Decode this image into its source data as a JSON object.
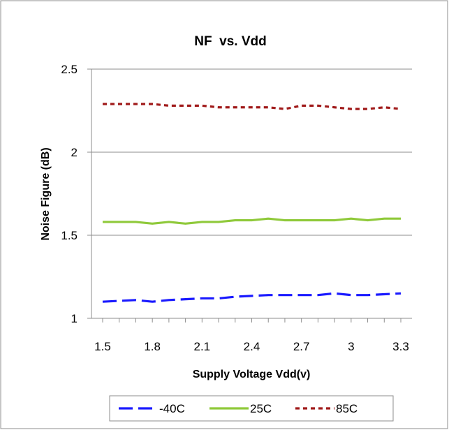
{
  "chart_data": {
    "type": "line",
    "title": "NF  vs. Vdd",
    "xlabel": "Supply Voltage Vdd(v)",
    "ylabel": "Noise Figure (dB)",
    "x": [
      1.5,
      1.6,
      1.7,
      1.8,
      1.9,
      2.0,
      2.1,
      2.2,
      2.3,
      2.4,
      2.5,
      2.6,
      2.7,
      2.8,
      2.9,
      3.0,
      3.1,
      3.2,
      3.3
    ],
    "x_tick_labels": [
      "1.5",
      "1.8",
      "2.1",
      "2.4",
      "2.7",
      "3",
      "3.3"
    ],
    "y_tick_labels": [
      "1",
      "1.5",
      "2",
      "2.5"
    ],
    "ylim": [
      1,
      2.5
    ],
    "grid": "horizontal",
    "legend_position": "bottom",
    "series": [
      {
        "name": "-40C",
        "color": "#1a1aff",
        "style": "long-dash",
        "values": [
          1.1,
          1.105,
          1.11,
          1.1,
          1.11,
          1.115,
          1.12,
          1.12,
          1.13,
          1.135,
          1.14,
          1.14,
          1.14,
          1.14,
          1.15,
          1.14,
          1.14,
          1.145,
          1.15
        ]
      },
      {
        "name": "25C",
        "color": "#8fc93a",
        "style": "solid",
        "values": [
          1.58,
          1.58,
          1.58,
          1.57,
          1.58,
          1.57,
          1.58,
          1.58,
          1.59,
          1.59,
          1.6,
          1.59,
          1.59,
          1.59,
          1.59,
          1.6,
          1.59,
          1.6,
          1.6
        ]
      },
      {
        "name": "85C",
        "color": "#a01a1a",
        "style": "dotted",
        "values": [
          2.29,
          2.29,
          2.29,
          2.29,
          2.28,
          2.28,
          2.28,
          2.27,
          2.27,
          2.27,
          2.27,
          2.26,
          2.28,
          2.28,
          2.27,
          2.26,
          2.26,
          2.27,
          2.26
        ]
      }
    ]
  }
}
